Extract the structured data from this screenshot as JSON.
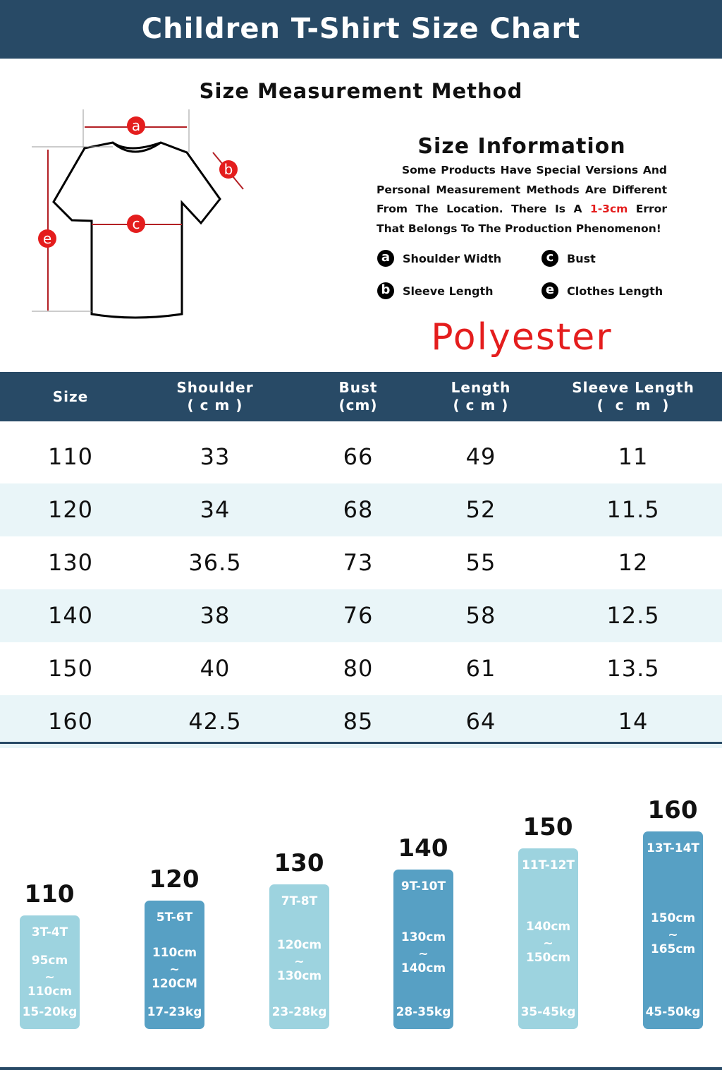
{
  "banner": {
    "title": "Children  T-Shirt Size Chart"
  },
  "method": {
    "title": "Size Measurement Method",
    "markers": [
      "a",
      "b",
      "c",
      "e"
    ]
  },
  "info": {
    "title": "Size Information",
    "text_before": "Some Products Have Special Versions And Personal Measurement Methods Are Different From The Location. There Is A ",
    "highlight": "1-3cm",
    "text_after": " Error That Belongs To The Production Phenomenon!",
    "legend": [
      {
        "mark": "a",
        "label": "Shoulder Width"
      },
      {
        "mark": "c",
        "label": "Bust"
      },
      {
        "mark": "b",
        "label": "Sleeve Length"
      },
      {
        "mark": "e",
        "label": "Clothes Length"
      }
    ]
  },
  "material": "Polyester",
  "table": {
    "headers": [
      "Size",
      "Shoulder\n( c m )",
      "Bust\n(cm)",
      "Length\n( c m )",
      "Sleeve Length\n(  c  m  )"
    ],
    "rows": [
      [
        "110",
        "33",
        "66",
        "49",
        "11"
      ],
      [
        "120",
        "34",
        "68",
        "52",
        "11.5"
      ],
      [
        "130",
        "36.5",
        "73",
        "55",
        "12"
      ],
      [
        "140",
        "38",
        "76",
        "58",
        "12.5"
      ],
      [
        "150",
        "40",
        "80",
        "61",
        "13.5"
      ],
      [
        "160",
        "42.5",
        "85",
        "64",
        "14"
      ]
    ]
  },
  "ages": [
    {
      "size": "110",
      "age": "3T-4T",
      "h1": "95cm",
      "tilde": "~",
      "h2": "110cm",
      "weight": "15-20kg"
    },
    {
      "size": "120",
      "age": "5T-6T",
      "h1": "110cm",
      "tilde": "~",
      "h2": "120CM",
      "weight": "17-23kg"
    },
    {
      "size": "130",
      "age": "7T-8T",
      "h1": "120cm",
      "tilde": "~",
      "h2": "130cm",
      "weight": "23-28kg"
    },
    {
      "size": "140",
      "age": "9T-10T",
      "h1": "130cm",
      "tilde": "~",
      "h2": "140cm",
      "weight": "28-35kg"
    },
    {
      "size": "150",
      "age": "11T-12T",
      "h1": "140cm",
      "tilde": "~",
      "h2": "150cm",
      "weight": "35-45kg"
    },
    {
      "size": "160",
      "age": "13T-14T",
      "h1": "150cm",
      "tilde": "~",
      "h2": "165cm",
      "weight": "45-50kg"
    }
  ],
  "colors": {
    "navy": "#284a66",
    "light_bar": "#9dd3df",
    "dark_bar": "#57a0c4",
    "red": "#e41d1d"
  }
}
